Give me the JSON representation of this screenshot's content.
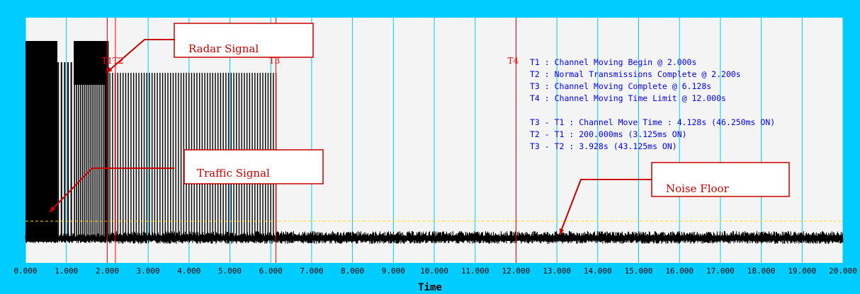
{
  "chart_data": {
    "type": "line",
    "title": "",
    "xlabel": "Time",
    "ylabel": "",
    "xlim": [
      0,
      20
    ],
    "x_ticks": [
      "0.000",
      "1.000",
      "2.000",
      "3.000",
      "4.000",
      "5.000",
      "6.000",
      "7.000",
      "8.000",
      "9.000",
      "10.000",
      "11.000",
      "12.000",
      "13.000",
      "14.000",
      "15.000",
      "16.000",
      "17.000",
      "18.000",
      "19.000",
      "20.000"
    ],
    "grid": true,
    "colors": {
      "background_outer": "#00ccff",
      "plot_background": "#f4f4f4",
      "gridline": "#00ccff",
      "trace": "#000000",
      "markers": "#ff0000",
      "info_text": "#0000ff",
      "threshold": "#ffd700",
      "annotation_text": "#cc0000"
    },
    "markers": [
      {
        "label": "T1",
        "x": 2.0
      },
      {
        "label": "T2",
        "x": 2.2
      },
      {
        "label": "T3",
        "x": 6.128
      },
      {
        "label": "T4",
        "x": 12.0
      }
    ],
    "marker_label_text": [
      {
        "label": "T1T2",
        "x": 2.0
      },
      {
        "label": "T3",
        "x": 6.128
      },
      {
        "label": "T4",
        "x": 12.0
      }
    ],
    "info_lines": [
      "T1 : Channel Moving Begin @ 2.000s",
      "T2 : Normal Transmissions Complete @ 2.200s",
      "T3 : Channel Moving Complete @ 6.128s",
      "T4 : Channel Moving Time Limit @ 12.000s",
      "",
      "T3 - T1 : Channel Move Time : 4.128s (46.250ms ON)",
      "T2 - T1 : 200.000ms (3.125ms ON)",
      "T3 - T2 : 3.928s (43.125ms ON)"
    ],
    "annotations": [
      {
        "text": "Radar Signal",
        "points_to_x": 1.95
      },
      {
        "text": "Traffic Signal",
        "points_to_x": 0.6
      },
      {
        "text": "Noise Floor",
        "points_to_x": 13.0
      }
    ]
  }
}
